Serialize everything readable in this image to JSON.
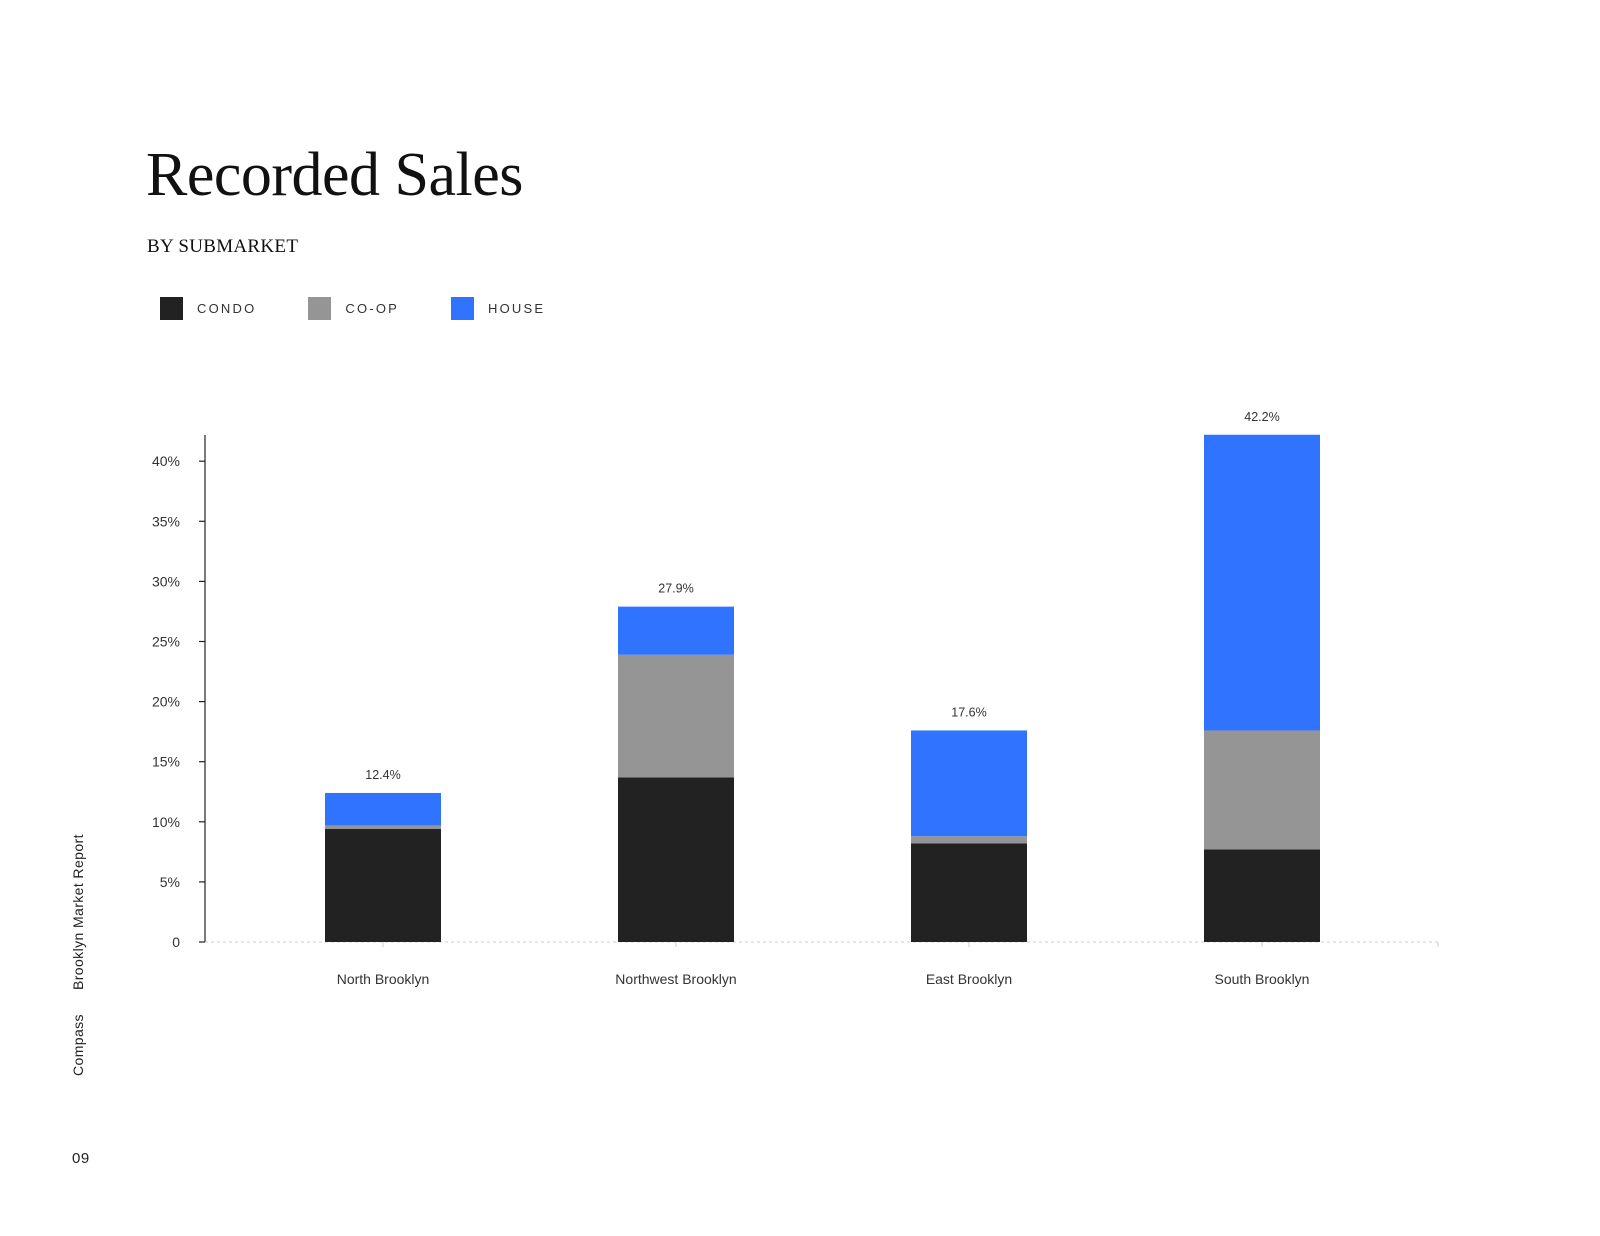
{
  "title": "Recorded Sales",
  "subtitle": "BY SUBMARKET",
  "legend": [
    {
      "label": "CONDO",
      "color": "#222222"
    },
    {
      "label": "CO-OP",
      "color": "#959595"
    },
    {
      "label": "HOUSE",
      "color": "#2F73FE"
    }
  ],
  "sidebar": {
    "report": "Brooklyn Market Report",
    "brand": "Compass",
    "page": "09"
  },
  "chart_data": {
    "type": "bar",
    "stacked": true,
    "categories": [
      "North Brooklyn",
      "Northwest Brooklyn",
      "East Brooklyn",
      "South Brooklyn"
    ],
    "series": [
      {
        "name": "CONDO",
        "color": "#222222",
        "values": [
          9.4,
          13.7,
          8.2,
          7.7
        ]
      },
      {
        "name": "CO-OP",
        "color": "#959595",
        "values": [
          0.3,
          10.2,
          0.6,
          9.9
        ]
      },
      {
        "name": "HOUSE",
        "color": "#2F73FE",
        "values": [
          2.7,
          4.0,
          8.8,
          24.6
        ]
      }
    ],
    "totals": [
      "12.4%",
      "27.9%",
      "17.6%",
      "42.2%"
    ],
    "ylim": [
      0,
      42
    ],
    "yticks": [
      {
        "value": 0,
        "label": "0"
      },
      {
        "value": 5,
        "label": "5%"
      },
      {
        "value": 10,
        "label": "10%"
      },
      {
        "value": 15,
        "label": "15%"
      },
      {
        "value": 20,
        "label": "20%"
      },
      {
        "value": 25,
        "label": "25%"
      },
      {
        "value": 30,
        "label": "30%"
      },
      {
        "value": 35,
        "label": "35%"
      },
      {
        "value": 40,
        "label": "40%"
      }
    ],
    "grid": false,
    "legend_position": "top-left"
  }
}
